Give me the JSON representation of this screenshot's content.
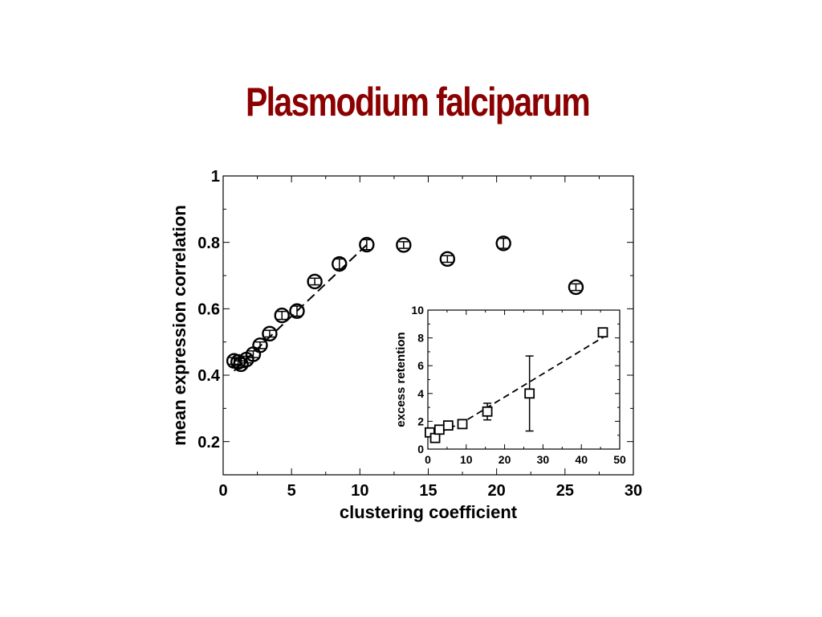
{
  "title": "Plasmodium falciparum",
  "chart_data": [
    {
      "type": "scatter",
      "role": "main",
      "xlabel": "clustering coefficient",
      "ylabel": "mean expression correlation",
      "xlim": [
        0,
        30
      ],
      "ylim": [
        0.1,
        1.0
      ],
      "xticks": [
        0,
        5,
        10,
        15,
        20,
        25,
        30
      ],
      "yticks": [
        0.2,
        0.4,
        0.6,
        0.8,
        1
      ],
      "ytick_labels": [
        "0.2",
        "0.4",
        "0.6",
        "0.8",
        "1"
      ],
      "marker": "open-circle",
      "points": [
        {
          "x": 0.8,
          "y": 0.443,
          "err": 0.01
        },
        {
          "x": 1.1,
          "y": 0.44,
          "err": 0.01
        },
        {
          "x": 1.3,
          "y": 0.433,
          "err": 0.01
        },
        {
          "x": 1.7,
          "y": 0.447,
          "err": 0.01
        },
        {
          "x": 2.2,
          "y": 0.463,
          "err": 0.01
        },
        {
          "x": 2.7,
          "y": 0.49,
          "err": 0.01
        },
        {
          "x": 3.4,
          "y": 0.525,
          "err": 0.01
        },
        {
          "x": 4.3,
          "y": 0.58,
          "err": 0.012
        },
        {
          "x": 5.4,
          "y": 0.593,
          "err": 0.015
        },
        {
          "x": 6.7,
          "y": 0.682,
          "err": 0.01
        },
        {
          "x": 8.5,
          "y": 0.735,
          "err": 0.015
        },
        {
          "x": 10.5,
          "y": 0.793,
          "err": 0.015
        },
        {
          "x": 13.2,
          "y": 0.792,
          "err": 0.01
        },
        {
          "x": 16.4,
          "y": 0.75,
          "err": 0.01
        },
        {
          "x": 20.5,
          "y": 0.797,
          "err": 0.015
        },
        {
          "x": 25.8,
          "y": 0.665,
          "err": 0.01
        }
      ],
      "fit_line": {
        "style": "dashed",
        "x": [
          0.8,
          10.5
        ],
        "y": [
          0.413,
          0.793
        ]
      }
    },
    {
      "type": "scatter",
      "role": "inset",
      "xlabel": "",
      "ylabel": "excess retention",
      "xlim": [
        0,
        50
      ],
      "ylim": [
        0,
        10
      ],
      "xticks": [
        0,
        10,
        20,
        30,
        40,
        50
      ],
      "yticks": [
        0,
        2,
        4,
        6,
        8,
        10
      ],
      "marker": "open-square",
      "points": [
        {
          "x": 0.5,
          "y": 1.2,
          "err": 0.2
        },
        {
          "x": 1.9,
          "y": 0.8,
          "err": 0.15
        },
        {
          "x": 3.0,
          "y": 1.4,
          "err": 0.15
        },
        {
          "x": 5.3,
          "y": 1.7,
          "err": 0.15
        },
        {
          "x": 9.0,
          "y": 1.8,
          "err": 0.1
        },
        {
          "x": 15.5,
          "y": 2.7,
          "err": 0.6
        },
        {
          "x": 26.5,
          "y": 4.0,
          "err": 2.7
        },
        {
          "x": 45.6,
          "y": 8.4,
          "err": 0.15
        }
      ],
      "fit_line": {
        "style": "dashed",
        "x": [
          0.5,
          9,
          46
        ],
        "y": [
          0.9,
          1.9,
          8.1
        ]
      }
    }
  ]
}
